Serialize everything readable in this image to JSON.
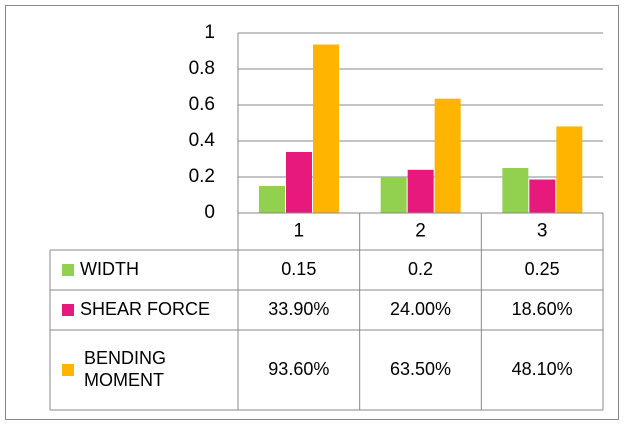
{
  "chart_data": {
    "type": "bar",
    "categories": [
      "1",
      "2",
      "3"
    ],
    "series": [
      {
        "name": "WIDTH",
        "color": "#92d14f",
        "values": [
          0.15,
          0.2,
          0.25
        ]
      },
      {
        "name": "SHEAR FORCE",
        "color": "#e8197d",
        "values": [
          0.339,
          0.24,
          0.186
        ],
        "value_labels": [
          "33.90%",
          "24.00%",
          "18.60%"
        ]
      },
      {
        "name": "BENDING MOMENT",
        "color": "#ffb400",
        "values": [
          0.936,
          0.635,
          0.481
        ],
        "value_labels": [
          "93.60%",
          "63.50%",
          "48.10%"
        ]
      }
    ],
    "ylim": [
      0,
      1
    ],
    "yticks": [
      0,
      0.2,
      0.4,
      0.6,
      0.8,
      1
    ],
    "grid": true,
    "data_table": true
  }
}
